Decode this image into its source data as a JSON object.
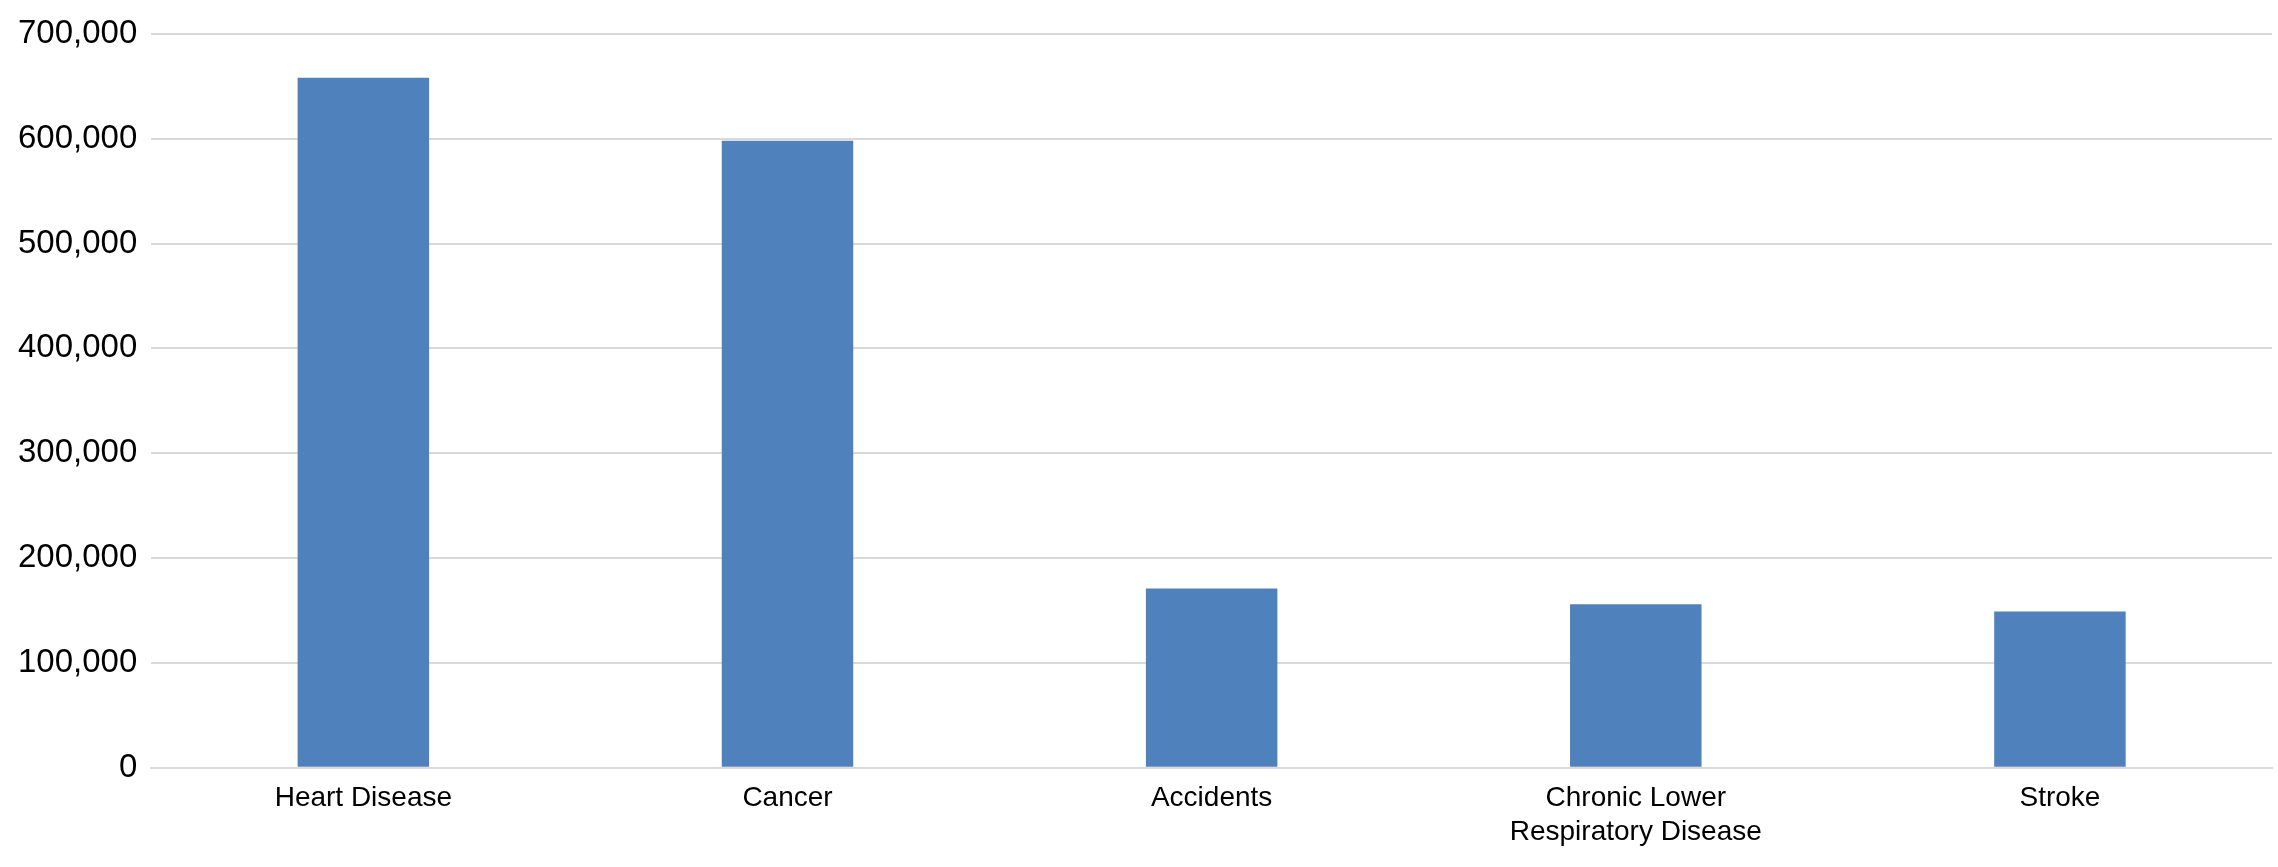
{
  "chart_data": {
    "type": "bar",
    "categories": [
      "Heart Disease",
      "Cancer",
      "Accidents",
      "Chronic Lower Respiratory Disease",
      "Stroke"
    ],
    "values": [
      658000,
      598000,
      171000,
      156000,
      149000
    ],
    "color": "#4f81bd",
    "ylim": [
      0,
      700000
    ],
    "yticks": [
      {
        "value": 0,
        "label": "0"
      },
      {
        "value": 100000,
        "label": "100,000"
      },
      {
        "value": 200000,
        "label": "200,000"
      },
      {
        "value": 300000,
        "label": "300,000"
      },
      {
        "value": 400000,
        "label": "400,000"
      },
      {
        "value": 500000,
        "label": "500,000"
      },
      {
        "value": 600000,
        "label": "600,000"
      },
      {
        "value": 700000,
        "label": "700,000"
      }
    ],
    "grid": "y"
  }
}
